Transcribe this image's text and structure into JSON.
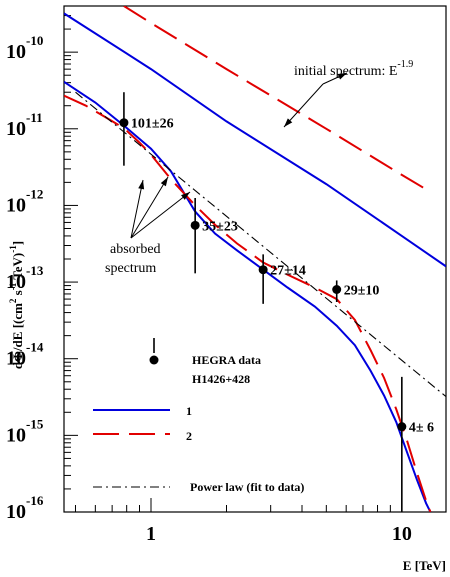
{
  "chart_data": {
    "type": "line",
    "xscale": "log",
    "yscale": "log",
    "xlim": [
      0.45,
      15
    ],
    "ylim": [
      1e-16,
      4e-10
    ],
    "grid": false,
    "xlabel": "E [TeV]",
    "ylabel_parts": [
      "dΦ/dE [(cm",
      "2",
      " s",
      "-1",
      " TeV)",
      "-1",
      "]"
    ],
    "x_ticks": [
      {
        "value": 1,
        "label": "1"
      },
      {
        "value": 10,
        "label": "10"
      }
    ],
    "y_ticks": [
      {
        "value": 1e-10,
        "base": "10",
        "exp": "-10"
      },
      {
        "value": 1e-11,
        "base": "10",
        "exp": "-11"
      },
      {
        "value": 1e-12,
        "base": "10",
        "exp": "-12"
      },
      {
        "value": 1e-13,
        "base": "10",
        "exp": "-13"
      },
      {
        "value": 1e-14,
        "base": "10",
        "exp": "-14"
      },
      {
        "value": 1e-15,
        "base": "10",
        "exp": "-15"
      },
      {
        "value": 1e-16,
        "base": "10",
        "exp": "-16"
      }
    ],
    "data_points": [
      {
        "x": 0.78,
        "y": 1.2e-11,
        "ylo": 3.3e-12,
        "yhi": 3e-11,
        "label": "101±26"
      },
      {
        "x": 1.5,
        "y": 5.5e-13,
        "ylo": 1.3e-13,
        "yhi": 1.25e-12,
        "label": "35±23"
      },
      {
        "x": 2.8,
        "y": 1.45e-13,
        "ylo": 5.2e-14,
        "yhi": 2.3e-13,
        "label": "27±14"
      },
      {
        "x": 5.5,
        "y": 8e-14,
        "ylo": 5.5e-14,
        "yhi": 1.05e-13,
        "label": "29±10"
      },
      {
        "x": 10.0,
        "y": 1.3e-15,
        "ylo": 1e-16,
        "yhi": 5.8e-15,
        "label": "4± 6"
      }
    ],
    "series": [
      {
        "name": "1",
        "style": "solid",
        "color": "#0000dd",
        "points": [
          [
            0.45,
            3.2e-10
          ],
          [
            1,
            6e-11
          ],
          [
            2,
            1.25e-11
          ],
          [
            5,
            1.9e-12
          ],
          [
            10,
            4e-13
          ],
          [
            15,
            1.6e-13
          ]
        ]
      },
      {
        "name": "2",
        "style": "dashed",
        "color": "#e10000",
        "points": [
          [
            0.78,
            4e-10
          ],
          [
            1,
            2.4e-10
          ],
          [
            2,
            6e-11
          ],
          [
            5,
            1e-11
          ],
          [
            10,
            2.5e-12
          ],
          [
            13,
            1.5e-12
          ]
        ]
      },
      {
        "name": "1",
        "style": "solid",
        "color": "#0000dd",
        "points": [
          [
            0.45,
            4.1e-11
          ],
          [
            0.6,
            2.2e-11
          ],
          [
            0.78,
            1.1e-11
          ],
          [
            1.0,
            5.5e-12
          ],
          [
            1.2,
            2.8e-12
          ],
          [
            1.5,
            8.3e-13
          ],
          [
            1.8,
            4.3e-13
          ],
          [
            2.2,
            2.6e-13
          ],
          [
            2.8,
            1.45e-13
          ],
          [
            3.5,
            8.5e-14
          ],
          [
            4.5,
            4.8e-14
          ],
          [
            5.5,
            2.7e-14
          ],
          [
            6.5,
            1.5e-14
          ],
          [
            7.5,
            7e-15
          ],
          [
            8.5,
            3.3e-15
          ],
          [
            9.5,
            1.5e-15
          ],
          [
            10.5,
            6e-16
          ],
          [
            11.5,
            2.6e-16
          ],
          [
            12.5,
            1.3e-16
          ],
          [
            13,
            1e-16
          ]
        ]
      },
      {
        "name": "2",
        "style": "dashed",
        "color": "#e10000",
        "points": [
          [
            0.45,
            2.7e-11
          ],
          [
            0.55,
            2e-11
          ],
          [
            0.65,
            1.45e-11
          ],
          [
            0.78,
            1.02e-11
          ],
          [
            0.9,
            6.6e-12
          ],
          [
            1.0,
            4.6e-12
          ],
          [
            1.2,
            2.2e-12
          ],
          [
            1.5,
            1e-12
          ],
          [
            1.8,
            5.6e-13
          ],
          [
            2.2,
            3.2e-13
          ],
          [
            2.8,
            1.8e-13
          ],
          [
            3.5,
            1.25e-13
          ],
          [
            4.5,
            8.5e-14
          ],
          [
            5.5,
            6e-14
          ],
          [
            6.5,
            3.2e-14
          ],
          [
            7.5,
            1.3e-14
          ],
          [
            8.5,
            5.6e-15
          ],
          [
            9.5,
            2.2e-15
          ],
          [
            10.5,
            8.5e-16
          ],
          [
            11.5,
            3.2e-16
          ],
          [
            12.5,
            1.4e-16
          ],
          [
            13,
            1e-16
          ]
        ]
      },
      {
        "name": "Power law (fit to data)",
        "style": "dashdot",
        "color": "#000000",
        "points": [
          [
            0.5,
            3e-11
          ],
          [
            15,
            3.2e-15
          ]
        ]
      }
    ],
    "annotations": {
      "initial_spectrum_base": "initial spectrum: E",
      "initial_spectrum_exp": "-1.9",
      "absorbed_line1": "absorbed",
      "absorbed_line2": "spectrum"
    },
    "legend": {
      "placement": "bottom-left",
      "data_entry_line1": "HEGRA data",
      "data_entry_line2": "H1426+428",
      "entries": [
        {
          "label": "1",
          "style": "solid",
          "color": "#0000dd"
        },
        {
          "label": "2",
          "style": "dashed",
          "color": "#e10000"
        },
        {
          "label": "Power law (fit to data)",
          "style": "dashdot",
          "color": "#000000"
        }
      ]
    }
  }
}
